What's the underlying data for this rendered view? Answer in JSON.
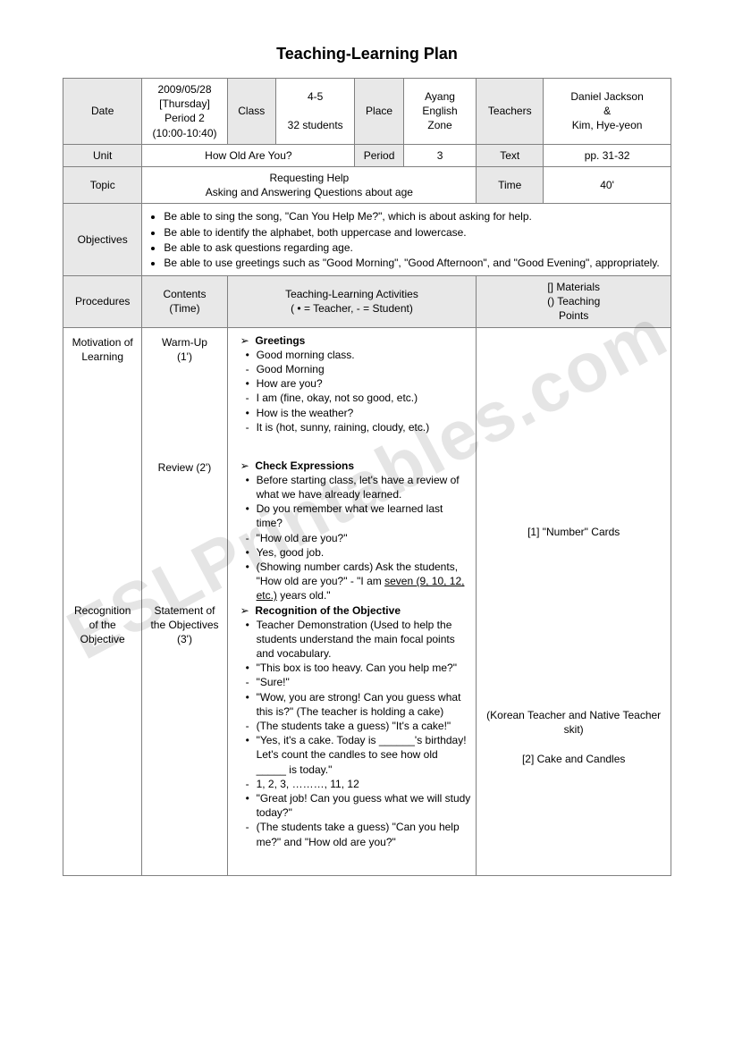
{
  "title": "Teaching-Learning Plan",
  "watermark": "ESLPrintables.com",
  "header": {
    "date_label": "Date",
    "date_value": "2009/05/28\n[Thursday]\nPeriod 2\n(10:00-10:40)",
    "class_label": "Class",
    "class_value": "4-5\n\n32 students",
    "place_label": "Place",
    "place_value": "Ayang\nEnglish\nZone",
    "teachers_label": "Teachers",
    "teachers_value": "Daniel Jackson\n&\nKim, Hye-yeon",
    "unit_label": "Unit",
    "unit_value": "How Old Are You?",
    "period_label": "Period",
    "period_value": "3",
    "text_label": "Text",
    "text_value": "pp. 31-32",
    "topic_label": "Topic",
    "topic_value": "Requesting Help\nAsking and Answering Questions about age",
    "time_label": "Time",
    "time_value": "40'",
    "objectives_label": "Objectives",
    "objectives": [
      "Be able to sing the song, \"Can You Help Me?\", which is about asking for help.",
      "Be able to identify the alphabet, both uppercase and lowercase.",
      "Be able to ask questions regarding age.",
      "Be able to use greetings such as \"Good Morning\", \"Good Afternoon\", and \"Good Evening\", appropriately."
    ],
    "procedures_label": "Procedures",
    "contents_label": "Contents\n(Time)",
    "activities_label": "Teaching-Learning Activities\n( • = Teacher, - = Student)",
    "materials_label": "[] Materials\n()  Teaching\nPoints"
  },
  "rows": [
    {
      "procedure": "Motivation of Learning",
      "contents": "Warm-Up\n(1')",
      "materials": "",
      "activities": {
        "title": "Greetings",
        "lines": [
          {
            "t": "b",
            "text": "Good morning class."
          },
          {
            "t": "d",
            "text": "Good Morning"
          },
          {
            "t": "b",
            "text": "How are you?"
          },
          {
            "t": "d",
            "text": "I am (fine, okay, not so good, etc.)"
          },
          {
            "t": "b",
            "text": "How is the weather?"
          },
          {
            "t": "d",
            "text": "It is (hot, sunny, raining, cloudy, etc.)"
          }
        ]
      }
    },
    {
      "procedure": "",
      "contents": "Review (2')",
      "materials": "[1]  \"Number\" Cards",
      "activities": {
        "title": "Check Expressions",
        "lines": [
          {
            "t": "b",
            "text": "Before starting class, let's have a review of what we have already learned."
          },
          {
            "t": "b",
            "text": "Do you remember what we learned last time?"
          },
          {
            "t": "d",
            "text": "\"How old are you?\""
          },
          {
            "t": "b",
            "text": "Yes, good job."
          },
          {
            "t": "b",
            "text": "(Showing number cards)  Ask the students, \"How old are you?\" - \"I am ",
            "underline": "seven (9, 10, 12, etc.)",
            "after": " years old.\""
          }
        ]
      }
    },
    {
      "procedure": "Recognition of the Objective",
      "contents": "Statement of the Objectives\n(3')",
      "materials": "(Korean Teacher and Native Teacher skit)\n\n[2]  Cake and Candles",
      "activities": {
        "title": "Recognition of the Objective",
        "lines": [
          {
            "t": "b",
            "text": "Teacher Demonstration (Used to help the students understand the main focal points and vocabulary."
          },
          {
            "t": "b",
            "text": "\"This box is too heavy.  Can you help me?\""
          },
          {
            "t": "d",
            "text": "\"Sure!\""
          },
          {
            "t": "b",
            "text": "\"Wow, you are strong!  Can you guess what this is?\" (The teacher is holding a cake)"
          },
          {
            "t": "d",
            "text": "(The students take a guess) \"It's a cake!\""
          },
          {
            "t": "b",
            "text": "\"Yes, it's a cake.  Today is ______'s birthday!  Let's count the candles to see how old _____ is today.\""
          },
          {
            "t": "d",
            "text": "1, 2, 3, ………, 11, 12"
          },
          {
            "t": "b",
            "text": "\"Great job!  Can you guess what we will study today?\""
          },
          {
            "t": "d",
            "text": "(The students take a guess) \"Can you help me?\" and \"How old are you?\""
          }
        ]
      }
    }
  ]
}
